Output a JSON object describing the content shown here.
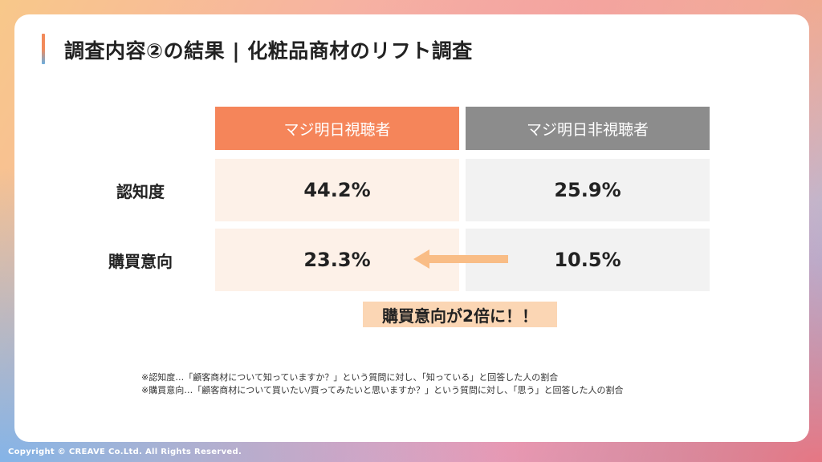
{
  "slide": {
    "title": "調査内容②の結果 | 化粧品商材のリフト調査"
  },
  "table": {
    "headers": {
      "viewer": "マジ明日視聴者",
      "non_viewer": "マジ明日非視聴者"
    },
    "rows": [
      {
        "label": "認知度",
        "viewer": "44.2%",
        "non_viewer": "25.9%"
      },
      {
        "label": "購買意向",
        "viewer": "23.3%",
        "non_viewer": "10.5%"
      }
    ]
  },
  "callout": "購買意向が2倍に！！",
  "notes": [
    "※認知度…「顧客商材について知っていますか？」という質問に対し、「知っている」と回答した人の割合",
    "※購買意向…「顧客商材について買いたい/買ってみたいと思いますか？」という質問に対し、「思う」と回答した人の割合"
  ],
  "footer": {
    "copyright": "Copyright © CREAVE Co.Ltd. All Rights Reserved."
  },
  "colors": {
    "viewer_header": "#f5855a",
    "non_viewer_header": "#8c8c8c",
    "viewer_cell": "#fdf1e8",
    "non_viewer_cell": "#f2f2f2",
    "callout_bg": "#fbd6b4",
    "arrow": "#f9bd86"
  },
  "icons": {
    "arrow": "left-arrow-icon"
  }
}
